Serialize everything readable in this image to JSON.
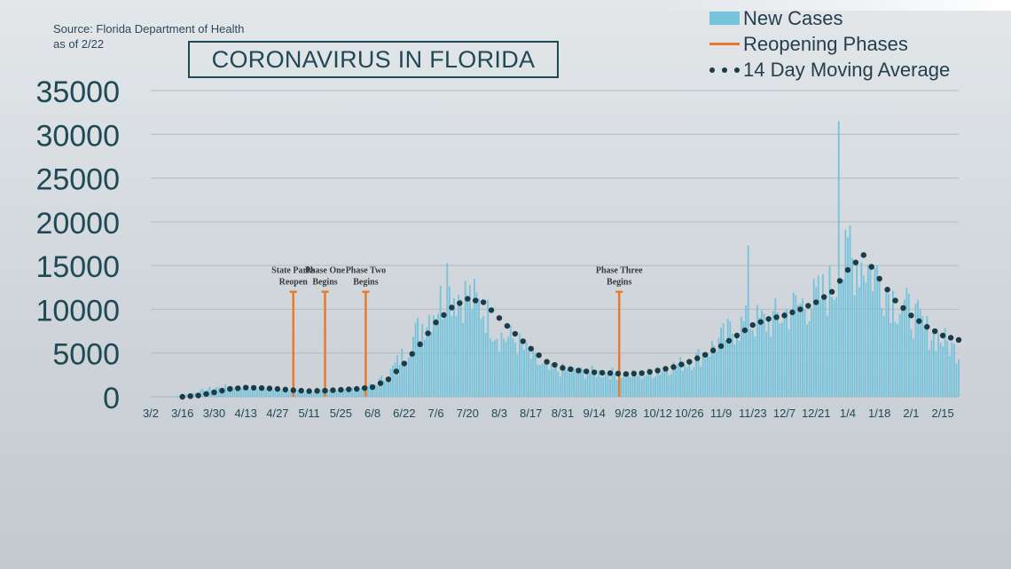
{
  "source_line1": "Source: Florida Department of Health",
  "source_line2": "as of 2/22",
  "title": "CORONAVIRUS IN FLORIDA",
  "legend": [
    {
      "label": "New Cases",
      "icon": "bar-swatch"
    },
    {
      "label": "Reopening Phases",
      "icon": "line-swatch"
    },
    {
      "label": "14 Day Moving Average",
      "icon": "dots-swatch"
    }
  ],
  "colors": {
    "bars": "#76c3dc",
    "phase": "#e87a2b",
    "average": "#1b3b45",
    "grid": "#b3babf",
    "axis_text": "#1f4a55"
  },
  "chart_data": {
    "type": "bar",
    "ylim": [
      0,
      35000
    ],
    "yticks": [
      0,
      5000,
      10000,
      15000,
      20000,
      25000,
      30000,
      35000
    ],
    "x_tick_labels": [
      "3/2",
      "3/16",
      "3/30",
      "4/13",
      "4/27",
      "5/11",
      "5/25",
      "6/8",
      "6/22",
      "7/6",
      "7/20",
      "8/3",
      "8/17",
      "8/31",
      "9/14",
      "9/28",
      "10/12",
      "10/26",
      "11/9",
      "11/23",
      "12/7",
      "12/21",
      "1/4",
      "1/18",
      "2/1",
      "2/15"
    ],
    "x_start": "3/2",
    "x_end": "2/22",
    "series": [
      {
        "name": "New Cases",
        "type": "bar",
        "points": [
          [
            "3/2",
            0
          ],
          [
            "3/9",
            20
          ],
          [
            "3/16",
            100
          ],
          [
            "3/23",
            600
          ],
          [
            "3/30",
            1000
          ],
          [
            "4/6",
            1200
          ],
          [
            "4/13",
            1050
          ],
          [
            "4/20",
            900
          ],
          [
            "4/27",
            800
          ],
          [
            "5/4",
            700
          ],
          [
            "5/11",
            600
          ],
          [
            "5/18",
            700
          ],
          [
            "5/25",
            800
          ],
          [
            "6/1",
            900
          ],
          [
            "6/8",
            1300
          ],
          [
            "6/15",
            2500
          ],
          [
            "6/22",
            5000
          ],
          [
            "6/29",
            8000
          ],
          [
            "7/6",
            10500
          ],
          [
            "7/13",
            12000
          ],
          [
            "7/20",
            11500
          ],
          [
            "7/27",
            10000
          ],
          [
            "8/3",
            7000
          ],
          [
            "8/10",
            6500
          ],
          [
            "8/17",
            4500
          ],
          [
            "8/24",
            3000
          ],
          [
            "8/31",
            3000
          ],
          [
            "9/7",
            2800
          ],
          [
            "9/14",
            2800
          ],
          [
            "9/21",
            2700
          ],
          [
            "9/28",
            2500
          ],
          [
            "10/5",
            2500
          ],
          [
            "10/12",
            2900
          ],
          [
            "10/19",
            3500
          ],
          [
            "10/26",
            4000
          ],
          [
            "11/2",
            5000
          ],
          [
            "11/9",
            6500
          ],
          [
            "11/16",
            8000
          ],
          [
            "11/23",
            8500
          ],
          [
            "11/30",
            8500
          ],
          [
            "12/7",
            9500
          ],
          [
            "12/14",
            10500
          ],
          [
            "12/21",
            11000
          ],
          [
            "12/28",
            12500
          ],
          [
            "1/4",
            15500
          ],
          [
            "1/11",
            15500
          ],
          [
            "1/18",
            13500
          ],
          [
            "1/25",
            11000
          ],
          [
            "2/1",
            9500
          ],
          [
            "2/8",
            7500
          ],
          [
            "2/15",
            6500
          ],
          [
            "2/22",
            5000
          ]
        ],
        "peaks": [
          [
            "7/11",
            15300
          ],
          [
            "11/21",
            17300
          ],
          [
            "12/31",
            31500
          ],
          [
            "1/5",
            19600
          ]
        ]
      },
      {
        "name": "14 Day Moving Average",
        "type": "scatter",
        "points": [
          [
            "3/16",
            0
          ],
          [
            "3/23",
            150
          ],
          [
            "3/30",
            500
          ],
          [
            "4/6",
            900
          ],
          [
            "4/13",
            1050
          ],
          [
            "4/20",
            1000
          ],
          [
            "4/27",
            900
          ],
          [
            "5/4",
            750
          ],
          [
            "5/11",
            650
          ],
          [
            "5/18",
            700
          ],
          [
            "5/25",
            800
          ],
          [
            "6/1",
            900
          ],
          [
            "6/8",
            1100
          ],
          [
            "6/15",
            2000
          ],
          [
            "6/22",
            3800
          ],
          [
            "6/29",
            6000
          ],
          [
            "7/6",
            8500
          ],
          [
            "7/13",
            10200
          ],
          [
            "7/20",
            11200
          ],
          [
            "7/27",
            10800
          ],
          [
            "8/3",
            9000
          ],
          [
            "8/10",
            7200
          ],
          [
            "8/17",
            5500
          ],
          [
            "8/24",
            4000
          ],
          [
            "8/31",
            3300
          ],
          [
            "9/7",
            3000
          ],
          [
            "9/14",
            2800
          ],
          [
            "9/21",
            2700
          ],
          [
            "9/28",
            2600
          ],
          [
            "10/5",
            2700
          ],
          [
            "10/12",
            3000
          ],
          [
            "10/19",
            3400
          ],
          [
            "10/26",
            4000
          ],
          [
            "11/2",
            4800
          ],
          [
            "11/9",
            5800
          ],
          [
            "11/16",
            7000
          ],
          [
            "11/23",
            8200
          ],
          [
            "11/30",
            8900
          ],
          [
            "12/7",
            9300
          ],
          [
            "12/14",
            10000
          ],
          [
            "12/21",
            10800
          ],
          [
            "12/28",
            12000
          ],
          [
            "1/4",
            14500
          ],
          [
            "1/11",
            16200
          ],
          [
            "1/18",
            13500
          ],
          [
            "1/25",
            11000
          ],
          [
            "2/1",
            9300
          ],
          [
            "2/8",
            8000
          ],
          [
            "2/15",
            7000
          ],
          [
            "2/22",
            6500
          ]
        ]
      }
    ],
    "phases": [
      {
        "date": "5/4",
        "value": 12000,
        "label_line1": "State Parks",
        "label_line2": "Reopen"
      },
      {
        "date": "5/18",
        "value": 12000,
        "label_line1": "Phase One",
        "label_line2": "Begins"
      },
      {
        "date": "6/5",
        "value": 12000,
        "label_line1": "Phase Two",
        "label_line2": "Begins"
      },
      {
        "date": "9/25",
        "value": 12000,
        "label_line1": "Phase Three",
        "label_line2": "Begins"
      }
    ]
  }
}
